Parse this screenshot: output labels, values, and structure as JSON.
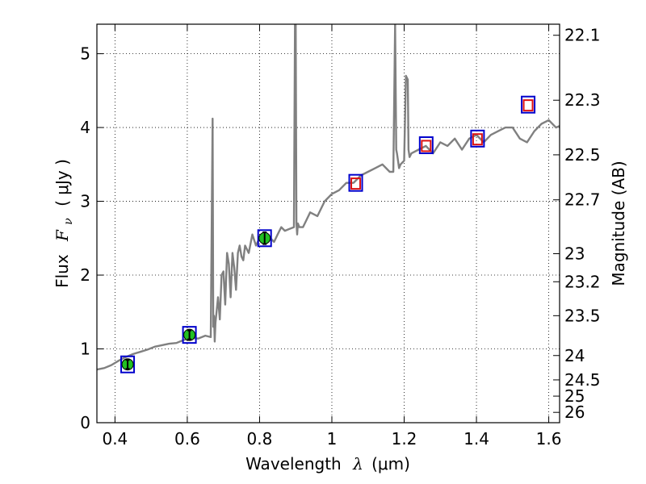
{
  "chart_data": {
    "type": "line",
    "xlabel_prefix": "Wavelength",
    "xlabel_symbol": "λ",
    "xlabel_unit": "(μm)",
    "ylabel_prefix": "Flux",
    "ylabel_symbol": "F",
    "ylabel_subscript": "ν",
    "ylabel_unit": "( μJy )",
    "y2label": "Magnitude (AB)",
    "xlim": [
      0.35,
      1.63
    ],
    "ylim": [
      0,
      5.4
    ],
    "grid": true,
    "x_ticks": [
      0.4,
      0.6,
      0.8,
      1.0,
      1.2,
      1.4,
      1.6
    ],
    "x_tick_labels": [
      "0.4",
      "0.6",
      "0.8",
      "1",
      "1.2",
      "1.4",
      "1.6"
    ],
    "y_ticks": [
      0,
      1,
      2,
      3,
      4,
      5
    ],
    "y_tick_labels": [
      "0",
      "1",
      "2",
      "3",
      "4",
      "5"
    ],
    "mag_ticks": [
      {
        "flux": 5.25,
        "label": "22.1"
      },
      {
        "flux": 4.37,
        "label": "22.3"
      },
      {
        "flux": 3.63,
        "label": "22.5"
      },
      {
        "flux": 3.02,
        "label": "22.7"
      },
      {
        "flux": 2.29,
        "label": "23"
      },
      {
        "flux": 1.91,
        "label": "23.2"
      },
      {
        "flux": 1.45,
        "label": "23.5"
      },
      {
        "flux": 0.91,
        "label": "24"
      },
      {
        "flux": 0.58,
        "label": "24.5"
      },
      {
        "flux": 0.36,
        "label": "25"
      },
      {
        "flux": 0.14,
        "label": "26"
      }
    ],
    "model_spectrum": {
      "name": "SED model",
      "color": "#808080",
      "x": [
        0.35,
        0.37,
        0.39,
        0.41,
        0.43,
        0.45,
        0.47,
        0.49,
        0.51,
        0.53,
        0.55,
        0.57,
        0.59,
        0.61,
        0.63,
        0.65,
        0.665,
        0.67,
        0.672,
        0.674,
        0.676,
        0.678,
        0.685,
        0.69,
        0.695,
        0.7,
        0.705,
        0.71,
        0.715,
        0.72,
        0.725,
        0.73,
        0.735,
        0.74,
        0.745,
        0.75,
        0.755,
        0.76,
        0.77,
        0.78,
        0.79,
        0.8,
        0.81,
        0.82,
        0.83,
        0.84,
        0.85,
        0.86,
        0.87,
        0.88,
        0.895,
        0.898,
        0.9,
        0.902,
        0.904,
        0.906,
        0.91,
        0.92,
        0.94,
        0.96,
        0.98,
        1.0,
        1.02,
        1.04,
        1.06,
        1.08,
        1.1,
        1.12,
        1.14,
        1.16,
        1.17,
        1.175,
        1.178,
        1.18,
        1.183,
        1.186,
        1.19,
        1.2,
        1.205,
        1.21,
        1.212,
        1.215,
        1.22,
        1.24,
        1.26,
        1.28,
        1.3,
        1.32,
        1.34,
        1.36,
        1.38,
        1.4,
        1.42,
        1.44,
        1.46,
        1.48,
        1.5,
        1.52,
        1.54,
        1.56,
        1.58,
        1.6,
        1.62,
        1.63
      ],
      "y": [
        0.72,
        0.74,
        0.78,
        0.84,
        0.89,
        0.93,
        0.96,
        0.99,
        1.03,
        1.05,
        1.07,
        1.08,
        1.12,
        1.15,
        1.14,
        1.18,
        1.16,
        4.12,
        1.3,
        1.45,
        1.1,
        1.35,
        1.7,
        1.4,
        2.0,
        2.05,
        1.6,
        2.3,
        2.15,
        1.7,
        2.3,
        2.1,
        1.8,
        2.3,
        2.4,
        2.25,
        2.2,
        2.4,
        2.3,
        2.55,
        2.4,
        2.5,
        2.45,
        2.55,
        2.5,
        2.45,
        2.55,
        2.65,
        2.6,
        2.62,
        2.65,
        5.4,
        5.4,
        2.7,
        2.55,
        2.7,
        2.65,
        2.65,
        2.85,
        2.8,
        3.0,
        3.1,
        3.15,
        3.25,
        3.25,
        3.35,
        3.4,
        3.45,
        3.5,
        3.4,
        3.4,
        5.4,
        3.7,
        3.65,
        3.55,
        3.45,
        3.5,
        3.55,
        4.7,
        4.65,
        3.7,
        3.6,
        3.65,
        3.7,
        3.75,
        3.65,
        3.8,
        3.75,
        3.85,
        3.7,
        3.85,
        3.9,
        3.8,
        3.9,
        3.95,
        4.0,
        4.0,
        3.85,
        3.8,
        3.95,
        4.05,
        4.1,
        4.0,
        4.02
      ]
    },
    "photometry_points": [
      {
        "x": 0.435,
        "y": 0.79,
        "err": 0.06
      },
      {
        "x": 0.606,
        "y": 1.19,
        "err": 0.06
      },
      {
        "x": 0.814,
        "y": 2.5,
        "err": 0.08
      }
    ],
    "model_photometry_points": [
      {
        "x": 0.435,
        "y": 0.79
      },
      {
        "x": 0.606,
        "y": 1.19
      },
      {
        "x": 0.814,
        "y": 2.5
      },
      {
        "x": 1.066,
        "y": 3.25
      },
      {
        "x": 1.261,
        "y": 3.76
      },
      {
        "x": 1.403,
        "y": 3.85
      },
      {
        "x": 1.543,
        "y": 4.31
      }
    ],
    "upper_points": [
      {
        "x": 1.066,
        "y": 3.24
      },
      {
        "x": 1.261,
        "y": 3.75
      },
      {
        "x": 1.403,
        "y": 3.84
      },
      {
        "x": 1.543,
        "y": 4.3
      }
    ],
    "colors": {
      "photometry_fill": "#22c022",
      "model_box": "#0000cc",
      "upper_box": "#dd1111",
      "axis": "#000000"
    }
  }
}
